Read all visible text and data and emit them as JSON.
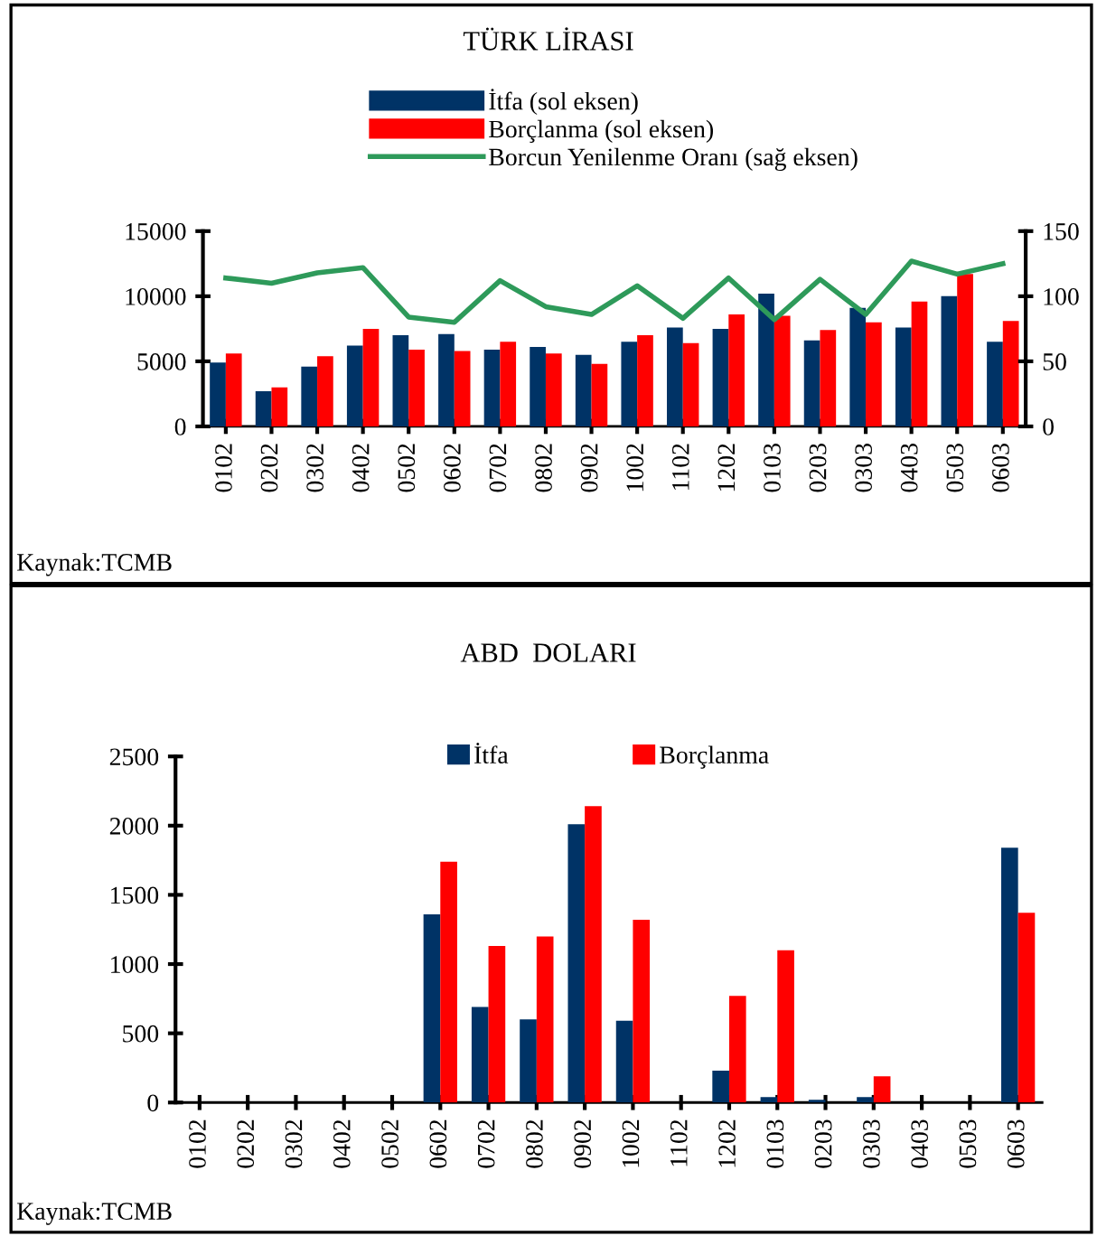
{
  "chart_data": [
    {
      "type": "bar",
      "title": "TÜRK LİRASI",
      "categories": [
        "0102",
        "0202",
        "0302",
        "0402",
        "0502",
        "0602",
        "0702",
        "0802",
        "0902",
        "1002",
        "1102",
        "1202",
        "0103",
        "0203",
        "0303",
        "0403",
        "0503",
        "0603"
      ],
      "series": [
        {
          "name": "İtfa (sol eksen)",
          "color": "#003366",
          "values": [
            4900,
            2700,
            4600,
            6200,
            7000,
            7100,
            5900,
            6100,
            5500,
            6500,
            7600,
            7500,
            10200,
            6600,
            9100,
            7600,
            10000,
            6500
          ]
        },
        {
          "name": "Borçlanma (sol eksen)",
          "color": "#ff0000",
          "values": [
            5600,
            3000,
            5400,
            7500,
            5900,
            5800,
            6500,
            5600,
            4800,
            7000,
            6400,
            8600,
            8500,
            7400,
            8000,
            9600,
            11700,
            8100
          ]
        },
        {
          "name": "Borcun Yenilenme Oranı (sağ eksen)",
          "type": "line",
          "axis": "y2",
          "color": "#2e9a5a",
          "values": [
            114,
            110,
            118,
            122,
            84,
            80,
            112,
            92,
            86,
            108,
            83,
            114,
            82,
            113,
            86,
            127,
            117,
            125
          ]
        }
      ],
      "ylim": [
        0,
        15000
      ],
      "yticks": [
        0,
        5000,
        10000,
        15000
      ],
      "y2lim": [
        0,
        150
      ],
      "y2ticks": [
        0,
        50,
        100,
        150
      ],
      "legend": "top",
      "grid": false,
      "annotations": [
        "Kaynak:TCMB"
      ]
    },
    {
      "type": "bar",
      "title": "ABD  DOLARI",
      "categories": [
        "0102",
        "0202",
        "0302",
        "0402",
        "0502",
        "0602",
        "0702",
        "0802",
        "0902",
        "1002",
        "1102",
        "1202",
        "0103",
        "0203",
        "0303",
        "0403",
        "0503",
        "0603"
      ],
      "series": [
        {
          "name": "İtfa",
          "color": "#003366",
          "values": [
            0,
            0,
            0,
            0,
            0,
            1360,
            690,
            600,
            2010,
            590,
            0,
            230,
            40,
            20,
            40,
            0,
            0,
            1840
          ]
        },
        {
          "name": "Borçlanma",
          "color": "#ff0000",
          "values": [
            0,
            0,
            0,
            0,
            0,
            1740,
            1130,
            1200,
            2140,
            1320,
            0,
            770,
            1100,
            0,
            190,
            0,
            0,
            1370
          ]
        }
      ],
      "ylim": [
        0,
        2500
      ],
      "yticks": [
        0,
        500,
        1000,
        1500,
        2000,
        2500
      ],
      "legend": "top",
      "grid": false,
      "annotations": [
        "Kaynak:TCMB"
      ]
    }
  ]
}
